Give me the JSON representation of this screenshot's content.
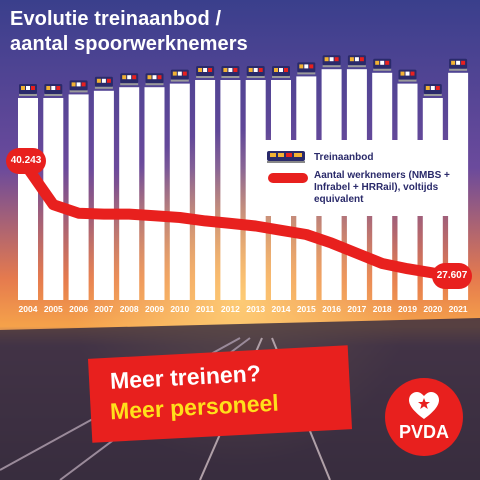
{
  "title_line1": "Evolutie treinaanbod /",
  "title_line2": "aantal spoorwerknemers",
  "colors": {
    "red": "#e8201e",
    "yellow": "#ffe01b",
    "navy": "#2a2a6a",
    "bar": "#ffffff"
  },
  "chart_data": {
    "type": "bar+line",
    "categories": [
      "2004",
      "2005",
      "2006",
      "2007",
      "2008",
      "2009",
      "2010",
      "2011",
      "2012",
      "2013",
      "2014",
      "2015",
      "2016",
      "2017",
      "2018",
      "2019",
      "2020",
      "2021"
    ],
    "series": [
      {
        "name": "Treinaanbod",
        "type": "bar",
        "values": [
          100,
          100,
          101,
          102,
          103,
          103,
          104,
          105,
          105,
          105,
          105,
          106,
          108,
          108,
          107,
          104,
          100,
          107
        ]
      },
      {
        "name": "Aantal werknemers (NMBS + Infrabel + HRRail), voltijds equivalent",
        "type": "line",
        "values": [
          40243,
          36000,
          35000,
          34900,
          34900,
          34700,
          34500,
          34100,
          33800,
          33500,
          33000,
          32500,
          31500,
          30300,
          29100,
          28500,
          28000,
          27607
        ]
      }
    ],
    "data_labels": {
      "first": "40.243",
      "last": "27.607"
    },
    "legend": {
      "item1": "Treinaanbod",
      "item2": "Aantal werknemers (NMBS + Infrabel + HRRail), voltijds equivalent"
    },
    "legend_position": "right"
  },
  "slogan": {
    "line1": "Meer treinen?",
    "line2": "Meer personeel"
  },
  "logo": {
    "text": "PVDA",
    "icon": "heart-star-icon"
  }
}
